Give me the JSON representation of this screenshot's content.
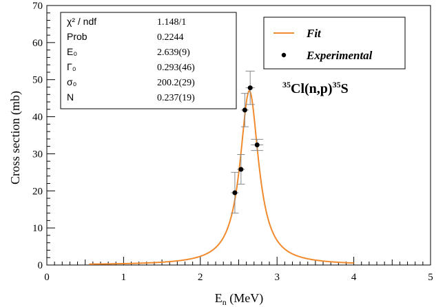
{
  "chart_data": {
    "type": "scatter",
    "xlabel_main": "E",
    "xlabel_sub": "n",
    "xlabel_unit": " (MeV)",
    "ylabel": "Cross section (mb)",
    "xlim": [
      0,
      5
    ],
    "ylim": [
      0,
      70
    ],
    "x_ticks": [
      0,
      1,
      2,
      3,
      4,
      5
    ],
    "y_ticks": [
      0,
      10,
      20,
      30,
      40,
      50,
      60,
      70
    ],
    "grid": false,
    "reaction": {
      "sup1": "35",
      "main": "Cl(n,p)",
      "sup2": "35",
      "tail": "S"
    },
    "stats_box": {
      "rows": [
        {
          "label_html": "χ² / ndf",
          "value": "1.148/1"
        },
        {
          "label_html": "Prob",
          "value": "0.2244"
        },
        {
          "label_html": "E₀",
          "value": "2.639(9)"
        },
        {
          "label_html": "Γ₀",
          "value": "0.293(46)"
        },
        {
          "label_html": "σ₀",
          "value": "200.2(29)"
        },
        {
          "label_html": "N",
          "value": "0.237(19)"
        }
      ]
    },
    "legend": {
      "placement": "top-right",
      "fit_label": "Fit",
      "exp_label": "Experimental"
    },
    "fit_params": {
      "E0": 2.639,
      "Gamma0": 0.293,
      "x_start": 0.55,
      "x_end": 4.0,
      "color": "#f08a2c"
    },
    "series": [
      {
        "name": "Experimental",
        "points": [
          {
            "x": 2.45,
            "y": 19.5,
            "xerr": 0.05,
            "yerr": 5.5
          },
          {
            "x": 2.53,
            "y": 25.8,
            "xerr": 0.05,
            "yerr": 4.0
          },
          {
            "x": 2.58,
            "y": 41.8,
            "xerr": 0.05,
            "yerr": 4.5
          },
          {
            "x": 2.65,
            "y": 47.8,
            "xerr": 0.06,
            "yerr": 4.5
          },
          {
            "x": 2.74,
            "y": 32.4,
            "xerr": 0.08,
            "yerr": 1.5
          }
        ]
      }
    ]
  }
}
